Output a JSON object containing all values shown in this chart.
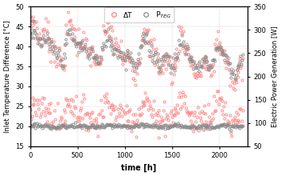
{
  "title": "",
  "xlabel": "time [h]",
  "ylabel_left": "Inlet Temperature Difference [°C]",
  "ylabel_right": "Electric Power Generation [W]",
  "legend_label_delta": "ΔT",
  "legend_label_pteg": "P$_{TEG}$",
  "xlim": [
    0,
    2300
  ],
  "ylim_left": [
    15,
    50
  ],
  "ylim_right": [
    50,
    350
  ],
  "xticks": [
    0,
    500,
    1000,
    1500,
    2000
  ],
  "yticks_left": [
    15,
    20,
    25,
    30,
    35,
    40,
    45,
    50
  ],
  "yticks_right": [
    50,
    100,
    150,
    200,
    250,
    300,
    350
  ],
  "color_delta": "#FF8080",
  "color_pteg": "#888888",
  "marker_size": 2.2,
  "figsize": [
    3.52,
    2.2
  ],
  "dpi": 100,
  "dt_upper_base_start": 42,
  "dt_upper_base_end": 35,
  "dt_lower_base": 23.5,
  "pteg_upper_base_start": 270,
  "pteg_upper_base_end": 230,
  "pteg_lower_base": 93
}
